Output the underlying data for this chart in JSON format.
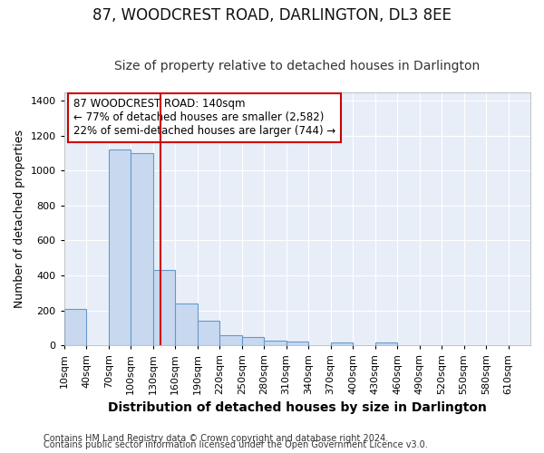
{
  "title": "87, WOODCREST ROAD, DARLINGTON, DL3 8EE",
  "subtitle": "Size of property relative to detached houses in Darlington",
  "xlabel": "Distribution of detached houses by size in Darlington",
  "ylabel": "Number of detached properties",
  "footnote1": "Contains HM Land Registry data © Crown copyright and database right 2024.",
  "footnote2": "Contains public sector information licensed under the Open Government Licence v3.0.",
  "annotation_line1": "87 WOODCREST ROAD: 140sqm",
  "annotation_line2": "← 77% of detached houses are smaller (2,582)",
  "annotation_line3": "22% of semi-detached houses are larger (744) →",
  "property_size": 140,
  "bin_edges": [
    10,
    40,
    70,
    100,
    130,
    160,
    190,
    220,
    250,
    280,
    310,
    340,
    370,
    400,
    430,
    460,
    490,
    520,
    550,
    580,
    610,
    640
  ],
  "bar_heights": [
    210,
    0,
    1120,
    1100,
    430,
    240,
    140,
    60,
    45,
    25,
    20,
    0,
    15,
    0,
    15,
    0,
    0,
    0,
    0,
    0,
    0
  ],
  "bar_color": "#c8d9ef",
  "bar_edge_color": "#6699cc",
  "vline_color": "#cc0000",
  "vline_x": 140,
  "annotation_box_color": "#cc0000",
  "ylim": [
    0,
    1450
  ],
  "yticks": [
    0,
    200,
    400,
    600,
    800,
    1000,
    1200,
    1400
  ],
  "bg_color": "#e8eef8",
  "grid_color": "#ffffff",
  "fig_bg_color": "#ffffff",
  "title_fontsize": 12,
  "subtitle_fontsize": 10,
  "xlabel_fontsize": 10,
  "ylabel_fontsize": 9,
  "tick_fontsize": 8,
  "annotation_fontsize": 8.5,
  "footnote_fontsize": 7
}
